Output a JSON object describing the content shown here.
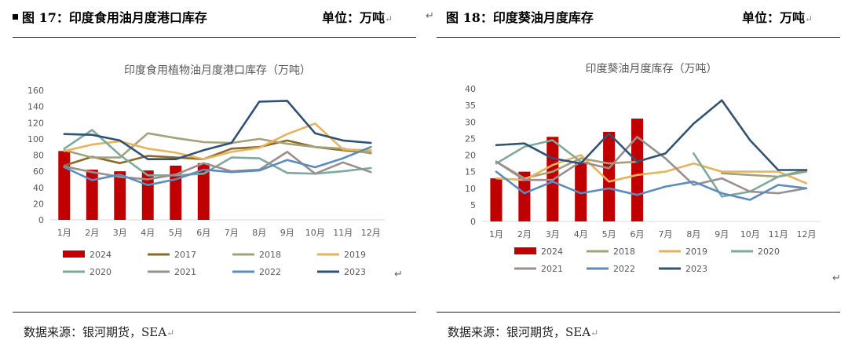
{
  "left": {
    "figure_title": "图 17：印度食用油月度港口库存",
    "unit": "单位：万吨",
    "source": "数据来源：银河期货，SEA"
  },
  "right": {
    "figure_title": "图 18：印度葵油月度库存",
    "unit": "单位：万吨",
    "source": "数据来源：银河期货，SEA"
  },
  "colors": {
    "2024": "#c00000",
    "2017": "#8c6a2a",
    "2018": "#a3a27a",
    "2019": "#e8b35a",
    "2020": "#7daa9c",
    "2021": "#9b8e8e",
    "2022": "#5b8cc0",
    "2023": "#2f5275"
  },
  "chart_data": [
    {
      "type": "bar+line",
      "title": "印度食用植物油月度港口库存（万吨）",
      "categories": [
        "1月",
        "2月",
        "3月",
        "4月",
        "5月",
        "6月",
        "7月",
        "8月",
        "9月",
        "10月",
        "11月",
        "12月"
      ],
      "ylim": [
        0,
        160
      ],
      "yticks": [
        0,
        20,
        40,
        60,
        80,
        100,
        120,
        140,
        160
      ],
      "bar_series": {
        "name": "2024",
        "values": [
          85,
          62,
          60,
          61,
          67,
          70
        ]
      },
      "series": [
        {
          "name": "2017",
          "values": [
            67,
            78,
            70,
            79,
            77,
            75,
            88,
            90,
            98,
            90,
            86,
            83
          ]
        },
        {
          "name": "2018",
          "values": [
            86,
            77,
            77,
            107,
            101,
            96,
            95,
            100,
            94,
            90,
            88,
            82
          ]
        },
        {
          "name": "2019",
          "values": [
            85,
            93,
            97,
            88,
            83,
            75,
            84,
            89,
            106,
            119,
            87,
            86
          ]
        },
        {
          "name": "2020",
          "values": [
            88,
            111,
            80,
            55,
            55,
            57,
            77,
            76,
            58,
            57,
            60,
            64
          ]
        },
        {
          "name": "2021",
          "values": [
            66,
            59,
            53,
            50,
            56,
            70,
            60,
            62,
            84,
            57,
            71,
            59
          ]
        },
        {
          "name": "2022",
          "values": [
            65,
            49,
            56,
            43,
            50,
            62,
            59,
            61,
            74,
            65,
            76,
            90
          ]
        },
        {
          "name": "2023",
          "values": [
            106,
            105,
            98,
            75,
            75,
            86,
            95,
            146,
            147,
            107,
            98,
            95
          ]
        }
      ],
      "legend": [
        "2024",
        "2017",
        "2018",
        "2019",
        "2020",
        "2021",
        "2022",
        "2023"
      ]
    },
    {
      "type": "bar+line",
      "title": "印度葵油月度库存（万吨）",
      "categories": [
        "1月",
        "2月",
        "3月",
        "4月",
        "5月",
        "6月",
        "7月",
        "8月",
        "9月",
        "10月",
        "11月",
        "12月"
      ],
      "ylim": [
        0,
        40
      ],
      "yticks": [
        0,
        5,
        10,
        15,
        20,
        25,
        30,
        35,
        40
      ],
      "bar_series": {
        "name": "2024",
        "values": [
          13,
          15,
          25.5,
          18,
          27,
          31
        ]
      },
      "series": [
        {
          "name": "2018",
          "values": [
            18,
            13,
            15,
            19,
            17.5,
            18,
            null,
            null,
            14.5,
            14,
            13.5,
            15
          ]
        },
        {
          "name": "2019",
          "values": [
            13,
            12.5,
            17,
            20,
            12,
            14,
            15,
            17.5,
            15,
            15,
            15,
            11.5
          ]
        },
        {
          "name": "2020",
          "values": [
            17.5,
            22.5,
            24.5,
            18,
            null,
            null,
            null,
            20.5,
            7.5,
            9,
            13.5,
            15.5
          ]
        },
        {
          "name": "2021",
          "values": [
            18,
            12.5,
            12.5,
            18,
            16,
            25.5,
            19,
            11,
            13,
            9,
            8.5,
            10
          ]
        },
        {
          "name": "2022",
          "values": [
            15,
            8.5,
            12,
            8.5,
            10,
            8,
            10.5,
            12,
            8.5,
            6.5,
            11,
            10
          ]
        },
        {
          "name": "2023",
          "values": [
            23,
            23.5,
            19,
            17.5,
            26.5,
            18,
            20.5,
            29.5,
            36.5,
            24.5,
            15.5,
            15.5
          ]
        }
      ],
      "legend": [
        "2024",
        "2018",
        "2019",
        "2020",
        "2021",
        "2022",
        "2023"
      ]
    }
  ]
}
